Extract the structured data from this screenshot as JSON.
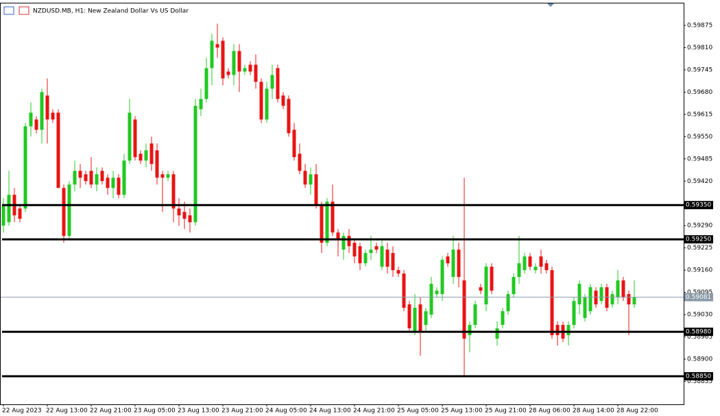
{
  "chart_data": {
    "type": "candlestick",
    "title": "NZDUSD.MB, H1:  New Zealand Dollar Vs US Dollar",
    "up_color": "#22c822",
    "down_color": "#e81414",
    "ylim": [
      0.58768,
      0.59939
    ],
    "yticks": [
      0.59875,
      {
        "value": 0.5981,
        "label": "0.59810"
      },
      0.59745,
      {
        "value": 0.5968,
        "label": "0.59680"
      },
      0.59615,
      {
        "value": 0.5955,
        "label": "0.59550"
      },
      0.59485,
      {
        "value": 0.5942,
        "label": "0.59420"
      },
      {
        "value": 0.5929,
        "label": "0.59290"
      },
      0.59225,
      {
        "value": 0.5916,
        "label": "0.59160"
      },
      0.59095,
      {
        "value": 0.5903,
        "label": "0.59030"
      },
      0.58965,
      {
        "value": 0.589,
        "label": "0.58900"
      },
      0.58835
    ],
    "levels": [
      {
        "value": 0.5935,
        "label": "0.59350"
      },
      {
        "value": 0.5925,
        "label": "0.59250"
      },
      {
        "value": 0.5898,
        "label": "0.58980"
      },
      {
        "value": 0.5885,
        "label": "0.58850"
      }
    ],
    "current_price": 0.59081,
    "categories": [
      "22 Aug 2023",
      null,
      null,
      null,
      null,
      null,
      null,
      null,
      "22 Aug 13:00",
      null,
      null,
      null,
      null,
      null,
      null,
      null,
      "22 Aug 21:00",
      null,
      null,
      null,
      null,
      null,
      null,
      null,
      "23 Aug 05:00",
      null,
      null,
      null,
      null,
      null,
      null,
      null,
      "23 Aug 13:00",
      null,
      null,
      null,
      null,
      null,
      null,
      null,
      "23 Aug 21:00",
      null,
      null,
      null,
      null,
      null,
      null,
      null,
      "24 Aug 05:00",
      null,
      null,
      null,
      null,
      null,
      null,
      null,
      "24 Aug 13:00",
      null,
      null,
      null,
      null,
      null,
      null,
      null,
      "24 Aug 21:00",
      null,
      null,
      null,
      null,
      null,
      null,
      null,
      "25 Aug 05:00",
      null,
      null,
      null,
      null,
      null,
      null,
      null,
      "25 Aug 13:00",
      null,
      null,
      null,
      null,
      null,
      null,
      null,
      "25 Aug 21:00",
      null,
      null,
      null,
      null,
      null,
      null,
      null,
      "28 Aug 06:00",
      null,
      null,
      null,
      null,
      null,
      null,
      null,
      "28 Aug 14:00",
      null,
      null,
      null,
      null,
      null,
      null,
      null,
      "28 Aug 22:00",
      null,
      null,
      null
    ],
    "open": [
      0.5929,
      0.593,
      0.5938,
      0.5934,
      0.5934,
      0.5958,
      0.596,
      0.5957,
      0.5967,
      0.5962,
      0.5962,
      0.594,
      0.5926,
      0.5941,
      0.5945,
      0.5944,
      0.5945,
      0.5941,
      0.5945,
      0.5943,
      0.594,
      0.5943,
      0.5938,
      0.5948,
      0.596,
      0.595,
      0.5948,
      0.5953,
      0.5951,
      0.5944,
      0.5943,
      0.5944,
      0.5934,
      0.5933,
      0.5932,
      0.593,
      0.5963,
      0.5966,
      0.5975,
      0.5982,
      0.5983,
      0.5974,
      0.5973,
      0.598,
      0.5974,
      0.5976,
      0.5976,
      0.5971,
      0.596,
      0.5969,
      0.5975,
      0.5967,
      0.5966,
      0.5957,
      0.595,
      0.5945,
      0.5941,
      0.5944,
      0.5935,
      0.5924,
      0.5936,
      0.5927,
      0.5922,
      0.5926,
      0.5924,
      0.5923,
      0.5918,
      0.5921,
      0.5923,
      0.5917,
      0.5922,
      0.5921,
      0.5916,
      0.5915,
      0.5906,
      0.5898,
      0.5906,
      0.59,
      0.5903,
      0.5909,
      0.5909,
      0.592,
      0.5914,
      0.5922,
      0.5913,
      0.5897,
      0.59,
      0.5911,
      0.5906,
      0.5917,
      0.5896,
      0.59,
      0.5904,
      0.5909,
      0.5914,
      0.5916,
      0.592,
      0.5916,
      0.592,
      0.5918,
      0.5916,
      0.59,
      0.59,
      0.5897,
      0.59,
      0.5906,
      0.5902,
      0.5904,
      0.591,
      0.5907,
      0.5911,
      0.5906,
      0.5908,
      0.5913,
      0.5909,
      0.5906
    ],
    "high": [
      0.5937,
      0.5945,
      0.594,
      0.5935,
      0.5959,
      0.5965,
      0.5961,
      0.5969,
      0.5972,
      0.5963,
      0.5963,
      0.5941,
      0.5942,
      0.5948,
      0.5947,
      0.5945,
      0.5949,
      0.5946,
      0.5946,
      0.5944,
      0.5945,
      0.5944,
      0.595,
      0.5966,
      0.5961,
      0.5951,
      0.5953,
      0.5955,
      0.5953,
      0.5945,
      0.5945,
      0.5945,
      0.5937,
      0.5936,
      0.5934,
      0.5966,
      0.5969,
      0.5978,
      0.5985,
      0.5988,
      0.5984,
      0.5975,
      0.5982,
      0.5982,
      0.5976,
      0.5977,
      0.5979,
      0.5972,
      0.5971,
      0.5976,
      0.5976,
      0.5968,
      0.5967,
      0.5959,
      0.5953,
      0.5947,
      0.5946,
      0.5947,
      0.5936,
      0.5937,
      0.5941,
      0.5928,
      0.5927,
      0.5928,
      0.5925,
      0.5924,
      0.5922,
      0.5926,
      0.5924,
      0.5925,
      0.5924,
      0.5923,
      0.5917,
      0.5916,
      0.5907,
      0.5909,
      0.5908,
      0.5905,
      0.5914,
      0.5911,
      0.592,
      0.5921,
      0.5926,
      0.5924,
      0.5943,
      0.5901,
      0.5907,
      0.5912,
      0.5918,
      0.5918,
      0.5901,
      0.5905,
      0.591,
      0.5915,
      0.5926,
      0.5921,
      0.5921,
      0.5918,
      0.5922,
      0.5919,
      0.5917,
      0.5901,
      0.5901,
      0.5901,
      0.5908,
      0.5913,
      0.5909,
      0.5912,
      0.5911,
      0.5912,
      0.5912,
      0.591,
      0.5916,
      0.5914,
      0.591,
      0.5913
    ],
    "low": [
      0.5927,
      0.5929,
      0.593,
      0.593,
      0.5933,
      0.5955,
      0.5956,
      0.5953,
      0.5953,
      0.5959,
      0.594,
      0.5924,
      0.5925,
      0.5939,
      0.594,
      0.5941,
      0.594,
      0.5939,
      0.5941,
      0.5938,
      0.5937,
      0.5937,
      0.5937,
      0.5947,
      0.5948,
      0.5947,
      0.5946,
      0.5945,
      0.5941,
      0.5933,
      0.5942,
      0.593,
      0.5929,
      0.5928,
      0.5927,
      0.5929,
      0.5961,
      0.5965,
      0.597,
      0.5978,
      0.597,
      0.5972,
      0.597,
      0.5968,
      0.5973,
      0.5973,
      0.5969,
      0.5959,
      0.5959,
      0.5966,
      0.5965,
      0.5963,
      0.5955,
      0.5948,
      0.5944,
      0.594,
      0.5938,
      0.5934,
      0.5921,
      0.5923,
      0.5926,
      0.592,
      0.5919,
      0.5921,
      0.5918,
      0.5916,
      0.5917,
      0.5919,
      0.5921,
      0.5916,
      0.5915,
      0.5914,
      0.5914,
      0.5904,
      0.5898,
      0.5897,
      0.5891,
      0.5898,
      0.5902,
      0.5908,
      0.5907,
      0.5917,
      0.5912,
      0.5911,
      0.5885,
      0.5892,
      0.5899,
      0.5909,
      0.5904,
      0.5909,
      0.5894,
      0.5899,
      0.5903,
      0.5908,
      0.5912,
      0.5915,
      0.5916,
      0.5915,
      0.5915,
      0.5915,
      0.5896,
      0.5894,
      0.5895,
      0.5894,
      0.5899,
      0.5903,
      0.5901,
      0.5903,
      0.5905,
      0.5906,
      0.5904,
      0.5905,
      0.5906,
      0.5907,
      0.5897,
      0.5905
    ],
    "close": [
      0.5935,
      0.5938,
      0.5932,
      0.5931,
      0.5958,
      0.5962,
      0.5957,
      0.5968,
      0.596,
      0.596,
      0.594,
      0.5926,
      0.5941,
      0.5945,
      0.5943,
      0.5942,
      0.5941,
      0.5944,
      0.5942,
      0.594,
      0.5943,
      0.5938,
      0.5948,
      0.5962,
      0.5949,
      0.5948,
      0.5951,
      0.5947,
      0.5943,
      0.5943,
      0.5944,
      0.5934,
      0.5932,
      0.5931,
      0.593,
      0.5964,
      0.5966,
      0.5975,
      0.5983,
      0.5981,
      0.5972,
      0.5973,
      0.598,
      0.5974,
      0.5975,
      0.5974,
      0.5971,
      0.596,
      0.5969,
      0.5973,
      0.5966,
      0.5964,
      0.5956,
      0.5949,
      0.5945,
      0.5941,
      0.5944,
      0.5935,
      0.5924,
      0.5936,
      0.5927,
      0.5925,
      0.5926,
      0.5923,
      0.592,
      0.5918,
      0.5921,
      0.5922,
      0.5922,
      0.5923,
      0.5917,
      0.5916,
      0.5915,
      0.5905,
      0.5899,
      0.5905,
      0.5898,
      0.5904,
      0.5912,
      0.591,
      0.5919,
      0.5918,
      0.5922,
      0.5914,
      0.5896,
      0.59,
      0.5906,
      0.591,
      0.5917,
      0.591,
      0.5899,
      0.5904,
      0.5909,
      0.5914,
      0.5918,
      0.592,
      0.5917,
      0.5917,
      0.5917,
      0.5916,
      0.5897,
      0.5897,
      0.5896,
      0.59,
      0.5907,
      0.5912,
      0.5908,
      0.5911,
      0.5906,
      0.5911,
      0.5905,
      0.5909,
      0.5913,
      0.5908,
      0.5906,
      0.5908
    ]
  }
}
